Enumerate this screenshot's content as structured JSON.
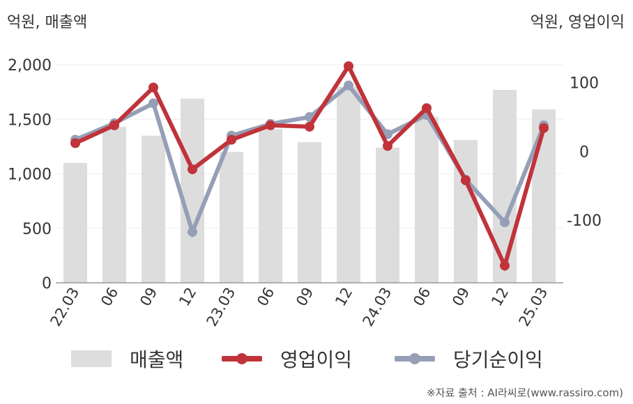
{
  "units": {
    "left": "억원, 매출액",
    "right": "억원, 영업이익"
  },
  "source": "※자료 출처 : AI라씨로(www.rassiro.com)",
  "colors": {
    "sales": "#dddddd",
    "operating": "#c0333a",
    "net": "#959fb7",
    "axis": "#999999",
    "grid": "#eeeeee",
    "text": "#333333"
  },
  "chart_data": {
    "type": "bar",
    "categories": [
      "22.03",
      "06",
      "09",
      "12",
      "23.03",
      "06",
      "09",
      "12",
      "24.03",
      "06",
      "09",
      "12",
      "25.03"
    ],
    "y_left": {
      "ticks": [
        0,
        500,
        1000,
        1500,
        2000
      ],
      "tick_labels": [
        "0",
        "500",
        "1,000",
        "1,500",
        "2,000"
      ],
      "range": [
        0,
        2000
      ]
    },
    "y_right": {
      "ticks": [
        -100,
        0,
        100
      ],
      "tick_labels": [
        "-100",
        "0",
        "100"
      ],
      "range": [
        -191,
        126
      ]
    },
    "grid": true,
    "legend_position": "bottom",
    "series": [
      {
        "name": "매출액",
        "type": "bar",
        "axis": "left",
        "values": [
          1100,
          1430,
          1350,
          1690,
          1200,
          1410,
          1290,
          1800,
          1240,
          1520,
          1310,
          1770,
          1590
        ]
      },
      {
        "name": "영업이익",
        "type": "line",
        "axis": "right",
        "values": [
          12,
          38,
          93,
          -26,
          17,
          38,
          36,
          124,
          8,
          63,
          -42,
          -166,
          34
        ]
      },
      {
        "name": "당기순이익",
        "type": "line",
        "axis": "right",
        "values": [
          17,
          41,
          70,
          -117,
          23,
          40,
          50,
          96,
          25,
          53,
          -41,
          -103,
          38
        ]
      }
    ]
  }
}
